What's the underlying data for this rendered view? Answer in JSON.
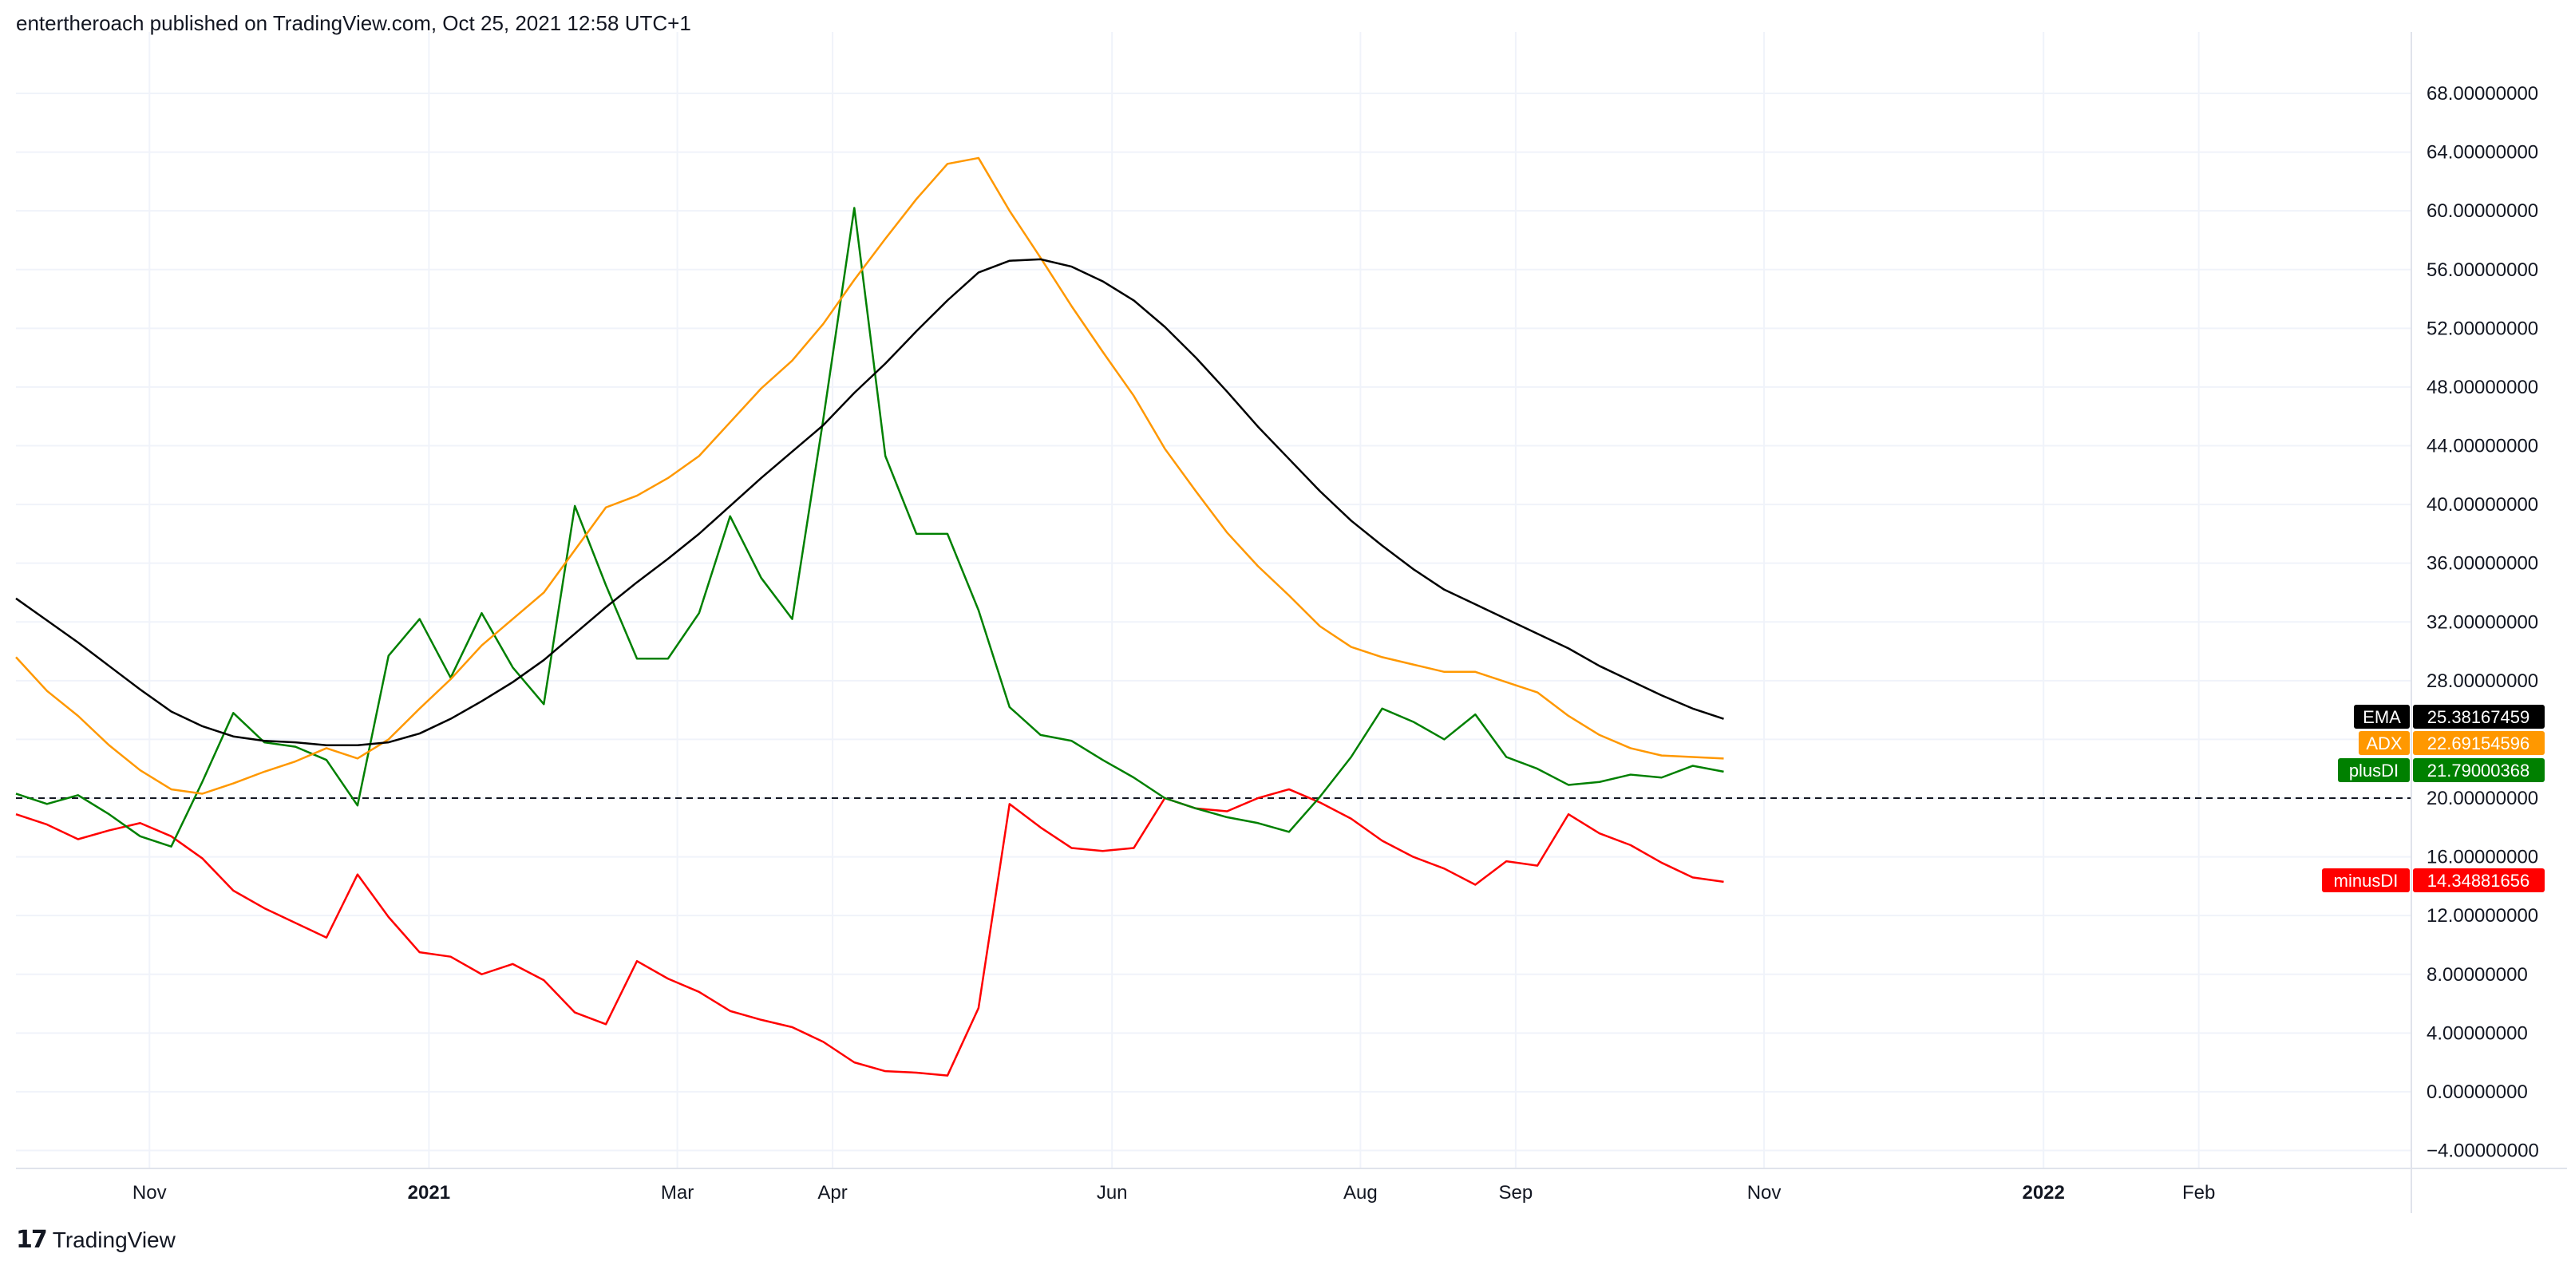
{
  "header": {
    "text": "entertheroach published on TradingView.com, Oct 25, 2021 12:58 UTC+1"
  },
  "footer": {
    "brand_icon": "tradingview-logo-icon",
    "brand_text": "TradingView"
  },
  "chart_data": {
    "type": "line",
    "ylim": [
      -5,
      71.5
    ],
    "y_ticks": [
      "68.00000000",
      "64.00000000",
      "60.00000000",
      "56.00000000",
      "52.00000000",
      "48.00000000",
      "44.00000000",
      "40.00000000",
      "36.00000000",
      "32.00000000",
      "28.00000000",
      "24.00000000",
      "20.00000000",
      "16.00000000",
      "12.00000000",
      "8.00000000",
      "4.00000000",
      "0.00000000",
      "−4.00000000"
    ],
    "y_tick_values": [
      68,
      64,
      60,
      56,
      52,
      48,
      44,
      40,
      36,
      32,
      28,
      24,
      20,
      16,
      12,
      8,
      4,
      0,
      -4
    ],
    "x_ticks": [
      {
        "label": "Nov",
        "week": 4.3,
        "major": false
      },
      {
        "label": "2021",
        "week": 13.3,
        "major": true
      },
      {
        "label": "Mar",
        "week": 21.3,
        "major": false
      },
      {
        "label": "Apr",
        "week": 26.3,
        "major": false
      },
      {
        "label": "Jun",
        "week": 35.3,
        "major": false
      },
      {
        "label": "Aug",
        "week": 43.3,
        "major": false
      },
      {
        "label": "Sep",
        "week": 48.3,
        "major": false
      },
      {
        "label": "Nov",
        "week": 56.3,
        "major": false
      },
      {
        "label": "2022",
        "week": 65.3,
        "major": true
      },
      {
        "label": "Feb",
        "week": 70.3,
        "major": false
      }
    ],
    "x_range_weeks": [
      0,
      77
    ],
    "reference_line": 20,
    "grid": true,
    "series": [
      {
        "name": "EMA",
        "color": "#000000",
        "last_value": "25.38167459",
        "values": [
          33.6,
          32.1,
          30.6,
          29.0,
          27.4,
          25.9,
          24.9,
          24.2,
          23.9,
          23.8,
          23.6,
          23.6,
          23.8,
          24.4,
          25.4,
          26.6,
          27.9,
          29.4,
          31.2,
          33.0,
          34.7,
          36.3,
          38.0,
          39.9,
          41.8,
          43.6,
          45.4,
          47.6,
          49.6,
          51.8,
          53.9,
          55.8,
          56.6,
          56.7,
          56.2,
          55.2,
          53.9,
          52.1,
          50.0,
          47.7,
          45.3,
          43.1,
          40.9,
          38.9,
          37.2,
          35.6,
          34.2,
          33.2,
          32.2,
          31.2,
          30.2,
          29.0,
          28.0,
          27.0,
          26.1,
          25.4
        ]
      },
      {
        "name": "ADX",
        "color": "#ff9800",
        "last_value": "22.69154596",
        "values": [
          29.6,
          27.3,
          25.6,
          23.6,
          21.9,
          20.6,
          20.3,
          21.0,
          21.8,
          22.5,
          23.4,
          22.7,
          24.0,
          26.1,
          28.1,
          30.4,
          32.2,
          34.0,
          36.9,
          39.8,
          40.6,
          41.8,
          43.3,
          45.6,
          47.9,
          49.8,
          52.3,
          55.3,
          58.1,
          60.8,
          63.2,
          63.6,
          60.0,
          56.8,
          53.5,
          50.4,
          47.4,
          43.8,
          40.9,
          38.1,
          35.8,
          33.8,
          31.7,
          30.3,
          29.6,
          29.1,
          28.6,
          28.6,
          27.9,
          27.2,
          25.6,
          24.3,
          23.4,
          22.9,
          22.8,
          22.7
        ]
      },
      {
        "name": "plusDI",
        "color": "#008000",
        "last_value": "21.79000368",
        "values": [
          20.3,
          19.6,
          20.2,
          18.9,
          17.4,
          16.7,
          21.1,
          25.8,
          23.8,
          23.5,
          22.6,
          19.5,
          29.7,
          32.2,
          28.2,
          32.6,
          28.9,
          26.4,
          39.9,
          34.5,
          29.5,
          29.5,
          32.6,
          39.2,
          35.0,
          32.2,
          45.8,
          60.2,
          43.3,
          38.0,
          38.0,
          32.8,
          26.2,
          24.3,
          23.9,
          22.6,
          21.4,
          20.0,
          19.3,
          18.7,
          18.3,
          17.7,
          20.1,
          22.8,
          26.1,
          25.2,
          24.0,
          25.7,
          22.8,
          22.0,
          20.9,
          21.1,
          21.6,
          21.4,
          22.2,
          21.8
        ]
      },
      {
        "name": "minusDI",
        "color": "#ff0000",
        "last_value": "14.34881656",
        "values": [
          18.9,
          18.2,
          17.2,
          17.8,
          18.3,
          17.4,
          15.9,
          13.7,
          12.5,
          11.5,
          10.5,
          14.8,
          11.9,
          9.5,
          9.2,
          8.0,
          8.7,
          7.6,
          5.4,
          4.6,
          8.9,
          7.7,
          6.8,
          5.5,
          4.9,
          4.4,
          3.4,
          2.0,
          1.4,
          1.3,
          1.1,
          5.7,
          19.6,
          18.0,
          16.6,
          16.4,
          16.6,
          20.0,
          19.3,
          19.1,
          20.0,
          20.6,
          19.7,
          18.6,
          17.1,
          16.0,
          15.2,
          14.1,
          15.7,
          15.4,
          18.9,
          17.6,
          16.8,
          15.6,
          14.6,
          14.3
        ]
      }
    ]
  }
}
